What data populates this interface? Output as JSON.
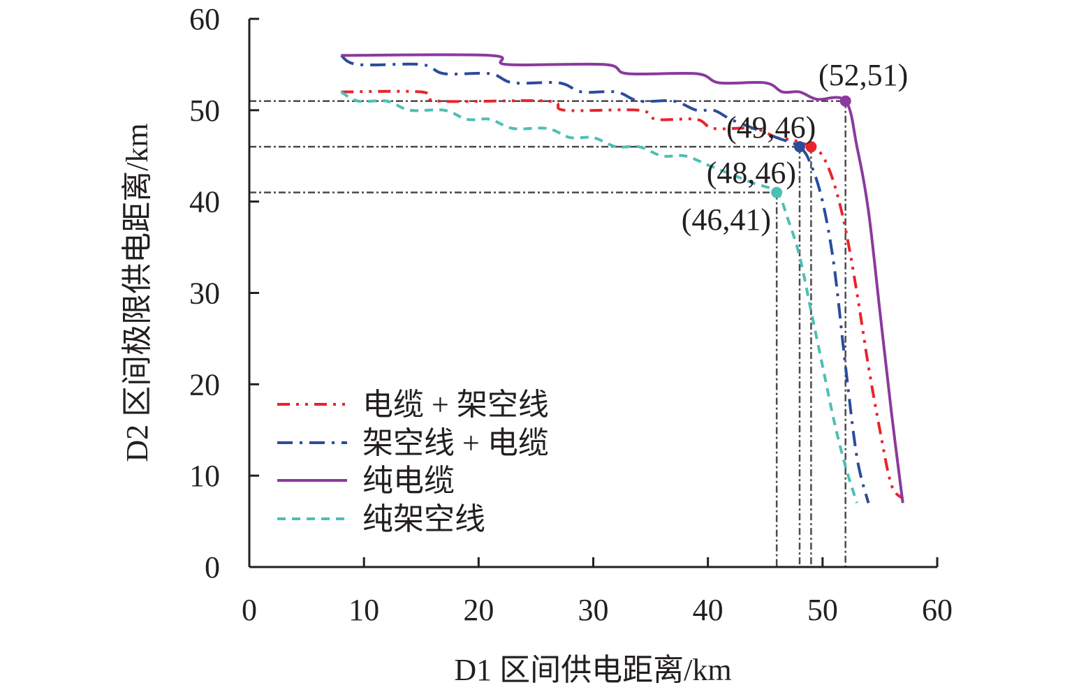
{
  "chart_data": {
    "type": "line",
    "title": "",
    "xlabel": "D1 区间供电距离/km",
    "ylabel": "D2 区间极限供电距离/km",
    "xlim": [
      0,
      60
    ],
    "ylim": [
      0,
      60
    ],
    "xticks": [
      0,
      10,
      20,
      30,
      40,
      50,
      60
    ],
    "yticks": [
      0,
      10,
      20,
      30,
      40,
      50,
      60
    ],
    "xtick_labels": [
      "0",
      "10",
      "20",
      "30",
      "40",
      "50",
      "60"
    ],
    "ytick_labels": [
      "0",
      "10",
      "20",
      "30",
      "40",
      "50",
      "60"
    ],
    "grid": false,
    "legend_position": "bottom-left",
    "series": [
      {
        "name": "电缆 + 架空线",
        "color": "#E8242B",
        "style": "dash-dot-dot",
        "points": [
          [
            8,
            52
          ],
          [
            15,
            52
          ],
          [
            16.5,
            51
          ],
          [
            26,
            51
          ],
          [
            27.5,
            50
          ],
          [
            34,
            50
          ],
          [
            35.5,
            49
          ],
          [
            39,
            49
          ],
          [
            40.5,
            48
          ],
          [
            44,
            48
          ],
          [
            46,
            47
          ],
          [
            47.5,
            46.7
          ],
          [
            49,
            46
          ],
          [
            50,
            45
          ],
          [
            51,
            42
          ],
          [
            52,
            37
          ],
          [
            53,
            30
          ],
          [
            54,
            22
          ],
          [
            55,
            15
          ],
          [
            56,
            9
          ],
          [
            57,
            7.5
          ]
        ]
      },
      {
        "name": "架空线 + 电缆",
        "color": "#2B4C9B",
        "style": "dash-dot",
        "points": [
          [
            8,
            56
          ],
          [
            9.5,
            55
          ],
          [
            15,
            55
          ],
          [
            17,
            54
          ],
          [
            21,
            54
          ],
          [
            23,
            53
          ],
          [
            27,
            53
          ],
          [
            29,
            52
          ],
          [
            32,
            52
          ],
          [
            34,
            51
          ],
          [
            37,
            51
          ],
          [
            39,
            50
          ],
          [
            40.5,
            50
          ],
          [
            42,
            49
          ],
          [
            44,
            48
          ],
          [
            46,
            47
          ],
          [
            48,
            46
          ],
          [
            49,
            44
          ],
          [
            50,
            40
          ],
          [
            51,
            33
          ],
          [
            52,
            22
          ],
          [
            53,
            12
          ],
          [
            54,
            7
          ]
        ]
      },
      {
        "name": "纯电缆",
        "color": "#8B3A9E",
        "style": "solid",
        "points": [
          [
            8,
            56
          ],
          [
            21,
            56
          ],
          [
            22.5,
            55
          ],
          [
            31,
            55
          ],
          [
            33,
            54
          ],
          [
            39,
            54
          ],
          [
            41,
            53
          ],
          [
            45,
            53
          ],
          [
            46.5,
            52
          ],
          [
            48,
            52
          ],
          [
            49.5,
            51.2
          ],
          [
            52,
            51
          ],
          [
            53,
            46
          ],
          [
            54,
            39
          ],
          [
            55,
            28
          ],
          [
            56,
            17
          ],
          [
            57,
            7
          ]
        ]
      },
      {
        "name": "纯架空线",
        "color": "#4DBFB5",
        "style": "dashed",
        "points": [
          [
            8,
            52
          ],
          [
            9.5,
            51
          ],
          [
            12,
            51
          ],
          [
            14,
            50
          ],
          [
            17,
            50
          ],
          [
            19,
            49
          ],
          [
            21,
            49
          ],
          [
            23,
            48
          ],
          [
            26,
            48
          ],
          [
            28,
            47
          ],
          [
            30,
            47
          ],
          [
            32,
            46
          ],
          [
            34,
            46
          ],
          [
            36,
            45
          ],
          [
            38,
            45
          ],
          [
            40,
            44
          ],
          [
            42,
            43
          ],
          [
            44,
            42
          ],
          [
            46,
            41
          ],
          [
            47,
            38
          ],
          [
            48,
            34
          ],
          [
            49,
            28
          ],
          [
            50,
            22
          ],
          [
            51,
            16
          ],
          [
            52,
            11
          ],
          [
            53,
            7
          ]
        ]
      }
    ],
    "annotations": [
      {
        "label": "(52,51)",
        "x": 52,
        "y": 51,
        "color": "#8B3A9E"
      },
      {
        "label": "(49,46)",
        "x": 49,
        "y": 46,
        "color": "#E8242B"
      },
      {
        "label": "(48,46)",
        "x": 48,
        "y": 46,
        "color": "#2B4C9B"
      },
      {
        "label": "(46,41)",
        "x": 46,
        "y": 41,
        "color": "#4DBFB5"
      }
    ],
    "reference_lines": {
      "horizontal": [
        51,
        46,
        41
      ],
      "vertical": [
        46,
        48,
        49,
        52
      ],
      "color": "#4a4a4a"
    }
  }
}
